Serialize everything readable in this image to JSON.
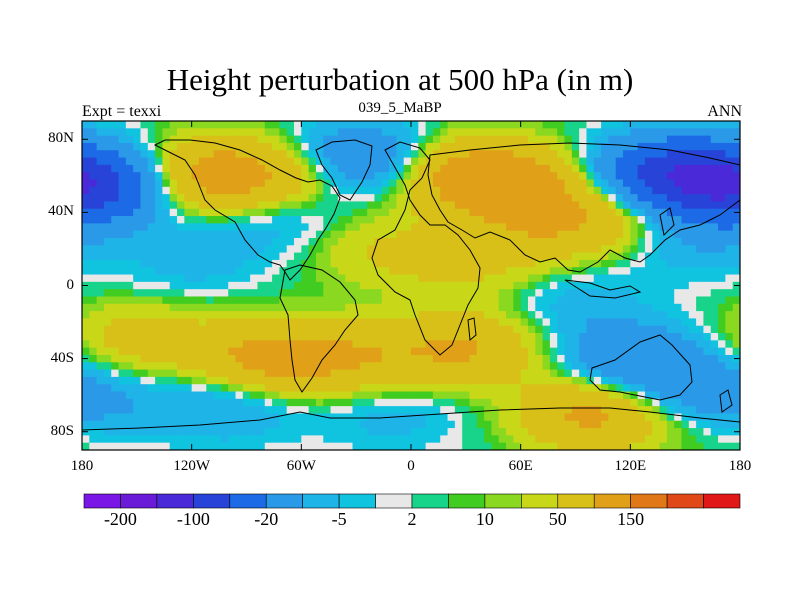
{
  "chart_data": {
    "type": "heatmap",
    "title": "Height perturbation at 500 hPa (in m)",
    "subtitle_left": "Expt = texxi",
    "subtitle_center": "039_5_MaBP",
    "subtitle_right": "ANN",
    "x_range": [
      -180,
      180
    ],
    "y_range": [
      -90,
      90
    ],
    "x_ticks": [
      {
        "value": -180,
        "label": "180"
      },
      {
        "value": -120,
        "label": "120W"
      },
      {
        "value": -60,
        "label": "60W"
      },
      {
        "value": 0,
        "label": "0"
      },
      {
        "value": 60,
        "label": "60E"
      },
      {
        "value": 120,
        "label": "120E"
      },
      {
        "value": 180,
        "label": "180"
      }
    ],
    "y_ticks": [
      {
        "value": 80,
        "label": "80N"
      },
      {
        "value": 40,
        "label": "40N"
      },
      {
        "value": 0,
        "label": "0"
      },
      {
        "value": -40,
        "label": "40S"
      },
      {
        "value": -80,
        "label": "80S"
      }
    ],
    "colorbar": {
      "colors": [
        "#7a17e6",
        "#6a1bd8",
        "#4a2ad8",
        "#2844d8",
        "#1d6ae6",
        "#2a9ae8",
        "#1fb4e8",
        "#10c4e0",
        "#e8e8e8",
        "#18d48a",
        "#40cc20",
        "#8ad820",
        "#c8d818",
        "#d8c018",
        "#e0a018",
        "#e07818",
        "#e04818",
        "#e01818"
      ],
      "tick_labels": [
        "-200",
        "-100",
        "-20",
        "-5",
        "2",
        "10",
        "50",
        "150"
      ]
    },
    "field_blobs": [
      {
        "lon": -170,
        "lat": 55,
        "value": -80
      },
      {
        "lon": -110,
        "lat": 60,
        "value": 70
      },
      {
        "lon": -60,
        "lat": 60,
        "value": 40
      },
      {
        "lon": -30,
        "lat": 68,
        "value": -60
      },
      {
        "lon": -70,
        "lat": 38,
        "value": -20
      },
      {
        "lon": 30,
        "lat": 60,
        "value": 60
      },
      {
        "lon": 60,
        "lat": 55,
        "value": 50
      },
      {
        "lon": 110,
        "lat": 40,
        "value": 40
      },
      {
        "lon": 140,
        "lat": 60,
        "value": -110
      },
      {
        "lon": 170,
        "lat": 55,
        "value": -60
      },
      {
        "lon": -20,
        "lat": 20,
        "value": 20
      },
      {
        "lon": 30,
        "lat": 10,
        "value": 20
      },
      {
        "lon": 70,
        "lat": 30,
        "value": 30
      },
      {
        "lon": -120,
        "lat": 15,
        "value": -15
      },
      {
        "lon": 150,
        "lat": 25,
        "value": -20
      },
      {
        "lon": 90,
        "lat": -10,
        "value": -15
      },
      {
        "lon": -150,
        "lat": -30,
        "value": 30
      },
      {
        "lon": -80,
        "lat": -40,
        "value": 60
      },
      {
        "lon": -30,
        "lat": -40,
        "value": 40
      },
      {
        "lon": 30,
        "lat": -35,
        "value": 50
      },
      {
        "lon": 120,
        "lat": -40,
        "value": -40
      },
      {
        "lon": 150,
        "lat": -55,
        "value": -30
      },
      {
        "lon": 100,
        "lat": -70,
        "value": 60
      },
      {
        "lon": -100,
        "lat": -65,
        "value": -25
      },
      {
        "lon": -170,
        "lat": -65,
        "value": -20
      },
      {
        "lon": 170,
        "lat": -80,
        "value": 5
      },
      {
        "lon": -10,
        "lat": -70,
        "value": -15
      }
    ]
  }
}
